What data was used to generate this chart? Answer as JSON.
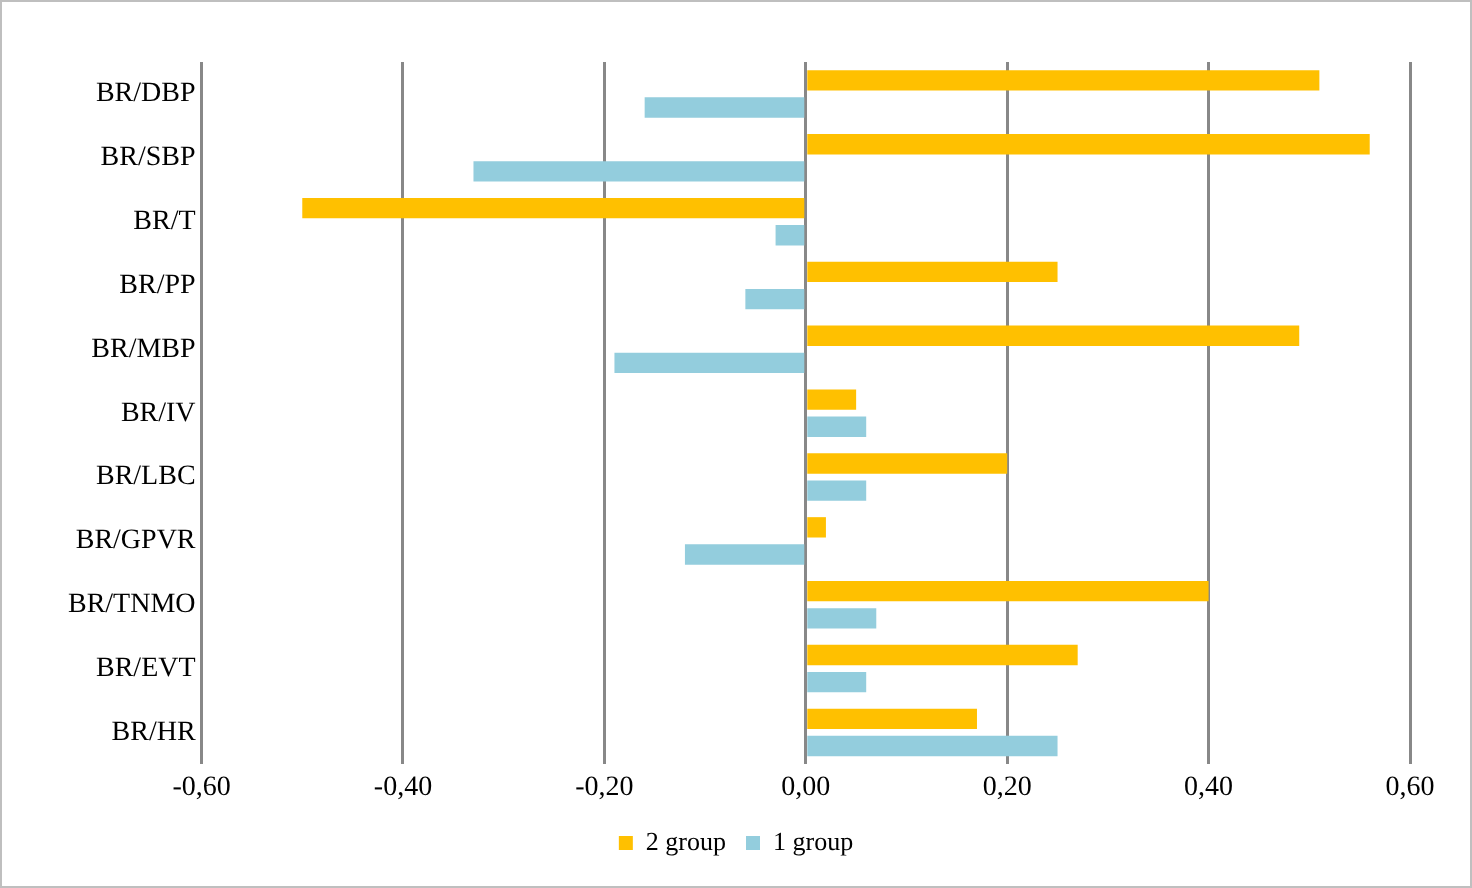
{
  "chart_data": {
    "type": "bar",
    "orientation": "horizontal",
    "categories": [
      "BR/DBP",
      "BR/SBP",
      "BR/T",
      "BR/PP",
      "BR/MBP",
      "BR/IV",
      "BR/LBC",
      "BR/GPVR",
      "BR/TNMO",
      "BR/EVT",
      "BR/HR"
    ],
    "series": [
      {
        "name": "2 group",
        "color": "#ffc000",
        "values": [
          0.51,
          0.56,
          -0.5,
          0.25,
          0.49,
          0.05,
          0.2,
          0.02,
          0.4,
          0.27,
          0.17
        ]
      },
      {
        "name": "1 group",
        "color": "#93cddd",
        "values": [
          -0.16,
          -0.33,
          -0.03,
          -0.06,
          -0.19,
          0.06,
          0.06,
          -0.12,
          0.07,
          0.06,
          0.25
        ]
      }
    ],
    "xlim": [
      -0.6,
      0.6
    ],
    "xticks": [
      {
        "value": -0.6,
        "label": "-0,60"
      },
      {
        "value": -0.4,
        "label": "-0,40"
      },
      {
        "value": -0.2,
        "label": "-0,20"
      },
      {
        "value": 0,
        "label": "0,00"
      },
      {
        "value": 0.2,
        "label": "0,20"
      },
      {
        "value": 0.4,
        "label": "0,40"
      },
      {
        "value": 0.6,
        "label": "0,60"
      }
    ],
    "grid": "x",
    "legend": "bottom"
  }
}
